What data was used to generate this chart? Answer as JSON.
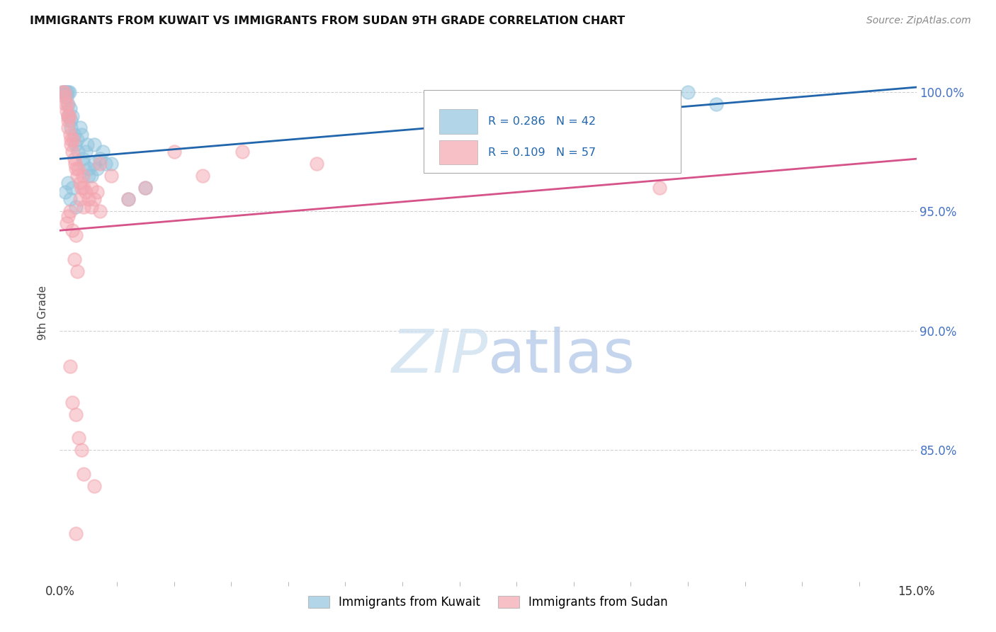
{
  "title": "IMMIGRANTS FROM KUWAIT VS IMMIGRANTS FROM SUDAN 9TH GRADE CORRELATION CHART",
  "source": "Source: ZipAtlas.com",
  "ylabel": "9th Grade",
  "xlim": [
    0.0,
    15.0
  ],
  "ylim": [
    79.5,
    102.0
  ],
  "yticks": [
    85.0,
    90.0,
    95.0,
    100.0
  ],
  "kuwait_R": 0.286,
  "kuwait_N": 42,
  "sudan_R": 0.109,
  "sudan_N": 57,
  "kuwait_color": "#92c5de",
  "sudan_color": "#f4a6b0",
  "kuwait_edge_color": "#92c5de",
  "sudan_edge_color": "#f4a6b0",
  "kuwait_line_color": "#2166ac",
  "sudan_line_color": "#d6538a",
  "legend_label_kuwait": "Immigrants from Kuwait",
  "legend_label_sudan": "Immigrants from Sudan",
  "kuwait_line_x0": 0.0,
  "kuwait_line_y0": 97.2,
  "kuwait_line_x1": 15.0,
  "kuwait_line_y1": 100.2,
  "sudan_line_x0": 0.0,
  "sudan_line_y0": 94.2,
  "sudan_line_x1": 15.0,
  "sudan_line_y1": 97.2,
  "kuwait_x": [
    0.05,
    0.08,
    0.1,
    0.12,
    0.12,
    0.14,
    0.15,
    0.15,
    0.17,
    0.18,
    0.2,
    0.2,
    0.22,
    0.25,
    0.27,
    0.3,
    0.32,
    0.35,
    0.38,
    0.4,
    0.42,
    0.45,
    0.48,
    0.5,
    0.55,
    0.6,
    0.65,
    0.7,
    0.75,
    0.8,
    0.1,
    0.15,
    0.18,
    0.22,
    0.28,
    0.5,
    0.6,
    0.9,
    1.2,
    1.5,
    11.0,
    11.5
  ],
  "kuwait_y": [
    100.0,
    100.0,
    100.0,
    100.0,
    99.8,
    100.0,
    99.5,
    99.0,
    100.0,
    99.3,
    98.8,
    98.5,
    99.0,
    98.2,
    97.8,
    98.0,
    97.5,
    98.5,
    98.2,
    97.2,
    97.0,
    97.5,
    97.8,
    96.8,
    96.5,
    97.0,
    96.8,
    97.2,
    97.5,
    97.0,
    95.8,
    96.2,
    95.5,
    96.0,
    95.2,
    96.5,
    97.8,
    97.0,
    95.5,
    96.0,
    100.0,
    99.5
  ],
  "sudan_x": [
    0.05,
    0.08,
    0.1,
    0.1,
    0.12,
    0.13,
    0.14,
    0.15,
    0.15,
    0.17,
    0.18,
    0.2,
    0.2,
    0.22,
    0.23,
    0.25,
    0.27,
    0.28,
    0.3,
    0.32,
    0.35,
    0.38,
    0.4,
    0.42,
    0.45,
    0.5,
    0.55,
    0.6,
    0.65,
    0.7,
    0.12,
    0.15,
    0.18,
    0.22,
    0.28,
    0.35,
    0.42,
    0.55,
    0.7,
    0.9,
    1.2,
    1.5,
    2.0,
    2.5,
    3.2,
    4.5,
    0.25,
    0.3,
    0.18,
    0.22,
    0.28,
    0.33,
    0.38,
    0.42,
    0.6,
    0.28,
    10.5
  ],
  "sudan_y": [
    100.0,
    100.0,
    99.8,
    99.5,
    99.2,
    99.5,
    99.0,
    98.8,
    98.5,
    99.0,
    98.2,
    98.0,
    97.8,
    97.5,
    98.0,
    97.2,
    97.0,
    96.8,
    96.5,
    96.8,
    96.2,
    96.0,
    96.5,
    96.0,
    95.8,
    95.5,
    95.2,
    95.5,
    95.8,
    95.0,
    94.5,
    94.8,
    95.0,
    94.2,
    94.0,
    95.5,
    95.2,
    96.0,
    97.0,
    96.5,
    95.5,
    96.0,
    97.5,
    96.5,
    97.5,
    97.0,
    93.0,
    92.5,
    88.5,
    87.0,
    86.5,
    85.5,
    85.0,
    84.0,
    83.5,
    81.5,
    96.0
  ]
}
